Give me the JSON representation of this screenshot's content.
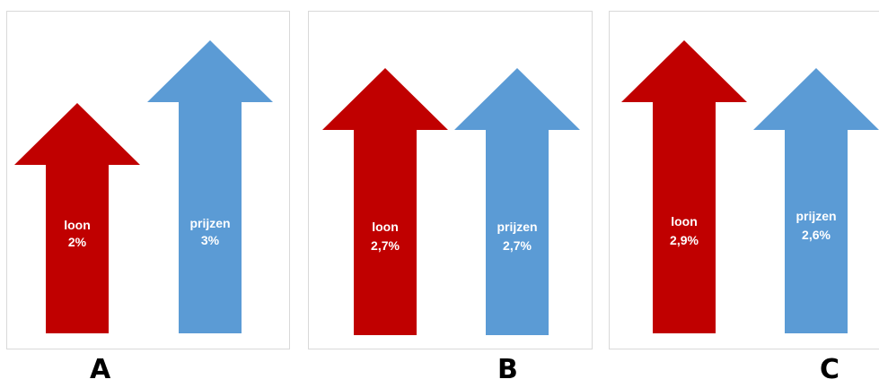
{
  "colors": {
    "loon": "#C00000",
    "prijzen": "#5B9BD5",
    "panel_border": "#D9D9D9"
  },
  "panels": [
    {
      "letter": "A",
      "loon": {
        "label": "loon",
        "value": "2%"
      },
      "prijzen": {
        "label": "prijzen",
        "value": "3%"
      }
    },
    {
      "letter": "B",
      "loon": {
        "label": "loon",
        "value": "2,7%"
      },
      "prijzen": {
        "label": "prijzen",
        "value": "2,7%"
      }
    },
    {
      "letter": "C",
      "loon": {
        "label": "loon",
        "value": "2,9%"
      },
      "prijzen": {
        "label": "prijzen",
        "value": "2,6%"
      }
    }
  ]
}
